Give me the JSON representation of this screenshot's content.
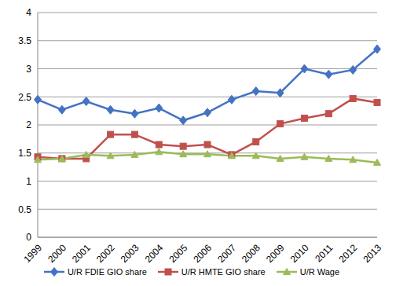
{
  "chart_data": {
    "type": "line",
    "categories": [
      "1999",
      "2000",
      "2001",
      "2002",
      "2003",
      "2004",
      "2005",
      "2006",
      "2007",
      "2008",
      "2009",
      "2010",
      "2011",
      "2012",
      "2013"
    ],
    "series": [
      {
        "name": "U/R FDIE GIO share",
        "color": "#4472c4",
        "marker": "diamond",
        "values": [
          2.45,
          2.27,
          2.42,
          2.27,
          2.2,
          2.3,
          2.08,
          2.22,
          2.45,
          2.6,
          2.57,
          3.0,
          2.9,
          2.98,
          3.35
        ]
      },
      {
        "name": "U/R HMTE GIO share",
        "color": "#c0504d",
        "marker": "square",
        "values": [
          1.43,
          1.4,
          1.4,
          1.83,
          1.83,
          1.65,
          1.62,
          1.65,
          1.47,
          1.7,
          2.02,
          2.12,
          2.2,
          2.47,
          2.4
        ]
      },
      {
        "name": "U/R Wage",
        "color": "#9bbb59",
        "marker": "triangle",
        "values": [
          1.38,
          1.4,
          1.47,
          1.45,
          1.47,
          1.52,
          1.48,
          1.48,
          1.45,
          1.45,
          1.4,
          1.43,
          1.4,
          1.38,
          1.33
        ]
      }
    ],
    "ylim": [
      0,
      4
    ],
    "yticks": [
      0,
      0.5,
      1,
      1.5,
      2,
      2.5,
      3,
      3.5,
      4
    ],
    "grid": true,
    "legend": "bottom"
  }
}
